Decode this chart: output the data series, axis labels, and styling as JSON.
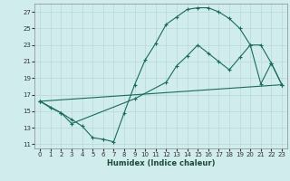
{
  "xlabel": "Humidex (Indice chaleur)",
  "xlim": [
    -0.5,
    23.5
  ],
  "ylim": [
    10.5,
    28.0
  ],
  "xticks": [
    0,
    1,
    2,
    3,
    4,
    5,
    6,
    7,
    8,
    9,
    10,
    11,
    12,
    13,
    14,
    15,
    16,
    17,
    18,
    19,
    20,
    21,
    22,
    23
  ],
  "yticks": [
    11,
    13,
    15,
    17,
    19,
    21,
    23,
    25,
    27
  ],
  "bg_color": "#d0ecec",
  "grid_color": "#b8d8d8",
  "line_color": "#1a6b5a",
  "line1_x": [
    0,
    1,
    2,
    3,
    4,
    5,
    6,
    7,
    8,
    9,
    10,
    11,
    12,
    13,
    14,
    15,
    16,
    17,
    18,
    19,
    20,
    21,
    22,
    23
  ],
  "line1_y": [
    16.2,
    15.4,
    14.8,
    14.0,
    13.2,
    11.8,
    11.6,
    11.3,
    14.8,
    18.2,
    21.2,
    23.2,
    25.5,
    26.4,
    27.3,
    27.5,
    27.5,
    27.0,
    26.2,
    25.0,
    23.0,
    18.3,
    20.8,
    18.2
  ],
  "line2_x": [
    0,
    2,
    3,
    9,
    12,
    13,
    14,
    15,
    16,
    17,
    18,
    19,
    20,
    21,
    22,
    23
  ],
  "line2_y": [
    16.2,
    14.8,
    13.5,
    16.5,
    18.5,
    20.5,
    21.7,
    23.0,
    22.0,
    21.0,
    20.0,
    21.5,
    23.0,
    23.0,
    20.8,
    18.2
  ],
  "line3_x": [
    0,
    23
  ],
  "line3_y": [
    16.2,
    18.2
  ]
}
